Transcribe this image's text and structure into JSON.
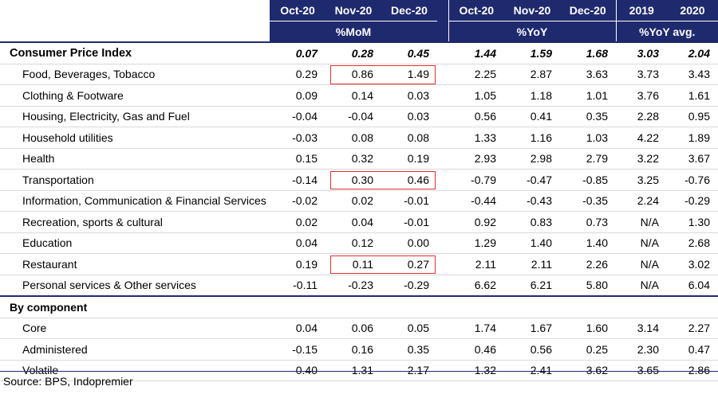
{
  "header": {
    "months": [
      "Oct-20",
      "Nov-20",
      "Dec-20"
    ],
    "mom_label": "%MoM",
    "yoy_label": "%YoY",
    "years": [
      "2019",
      "2020"
    ],
    "yoy_avg_label": "%YoY avg."
  },
  "main_row": {
    "label": "Consumer Price Index",
    "values": [
      "0.07",
      "0.28",
      "0.45",
      "1.44",
      "1.59",
      "1.68",
      "3.03",
      "2.04"
    ]
  },
  "categories": [
    {
      "label": "Food, Beverages, Tobacco",
      "values": [
        "0.29",
        "0.86",
        "1.49",
        "2.25",
        "2.87",
        "3.63",
        "3.73",
        "3.43"
      ]
    },
    {
      "label": "Clothing & Footware",
      "values": [
        "0.09",
        "0.14",
        "0.03",
        "1.05",
        "1.18",
        "1.01",
        "3.76",
        "1.61"
      ]
    },
    {
      "label": "Housing, Electricity, Gas and Fuel",
      "values": [
        "-0.04",
        "-0.04",
        "0.03",
        "0.56",
        "0.41",
        "0.35",
        "2.28",
        "0.95"
      ]
    },
    {
      "label": "Household utilities",
      "values": [
        "-0.03",
        "0.08",
        "0.08",
        "1.33",
        "1.16",
        "1.03",
        "4.22",
        "1.89"
      ]
    },
    {
      "label": "Health",
      "values": [
        "0.15",
        "0.32",
        "0.19",
        "2.93",
        "2.98",
        "2.79",
        "3.22",
        "3.67"
      ]
    },
    {
      "label": "Transportation",
      "values": [
        "-0.14",
        "0.30",
        "0.46",
        "-0.79",
        "-0.47",
        "-0.85",
        "3.25",
        "-0.76"
      ]
    },
    {
      "label": "Information, Communication & Financial Services",
      "values": [
        "-0.02",
        "0.02",
        "-0.01",
        "-0.44",
        "-0.43",
        "-0.35",
        "2.24",
        "-0.29"
      ]
    },
    {
      "label": "Recreation, sports & cultural",
      "values": [
        "0.02",
        "0.04",
        "-0.01",
        "0.92",
        "0.83",
        "0.73",
        "N/A",
        "1.30"
      ]
    },
    {
      "label": "Education",
      "values": [
        "0.04",
        "0.12",
        "0.00",
        "1.29",
        "1.40",
        "1.40",
        "N/A",
        "2.68"
      ]
    },
    {
      "label": "Restaurant",
      "values": [
        "0.19",
        "0.11",
        "0.27",
        "2.11",
        "2.11",
        "2.26",
        "N/A",
        "3.02"
      ]
    },
    {
      "label": "Personal services & Other services",
      "values": [
        "-0.11",
        "-0.23",
        "-0.29",
        "6.62",
        "6.21",
        "5.80",
        "N/A",
        "6.04"
      ]
    }
  ],
  "component_section": {
    "label": "By component",
    "rows": [
      {
        "label": "Core",
        "values": [
          "0.04",
          "0.06",
          "0.05",
          "1.74",
          "1.67",
          "1.60",
          "3.14",
          "2.27"
        ]
      },
      {
        "label": "Administered",
        "values": [
          "-0.15",
          "0.16",
          "0.35",
          "0.46",
          "0.56",
          "0.25",
          "2.30",
          "0.47"
        ]
      },
      {
        "label": "Volatile",
        "values": [
          "0.40",
          "1.31",
          "2.17",
          "1.32",
          "2.41",
          "3.62",
          "3.65",
          "2.86"
        ]
      }
    ]
  },
  "source": "Source: BPS, Indopremier",
  "highlight_color": "#e03030",
  "header_color": "#1f2a6e"
}
